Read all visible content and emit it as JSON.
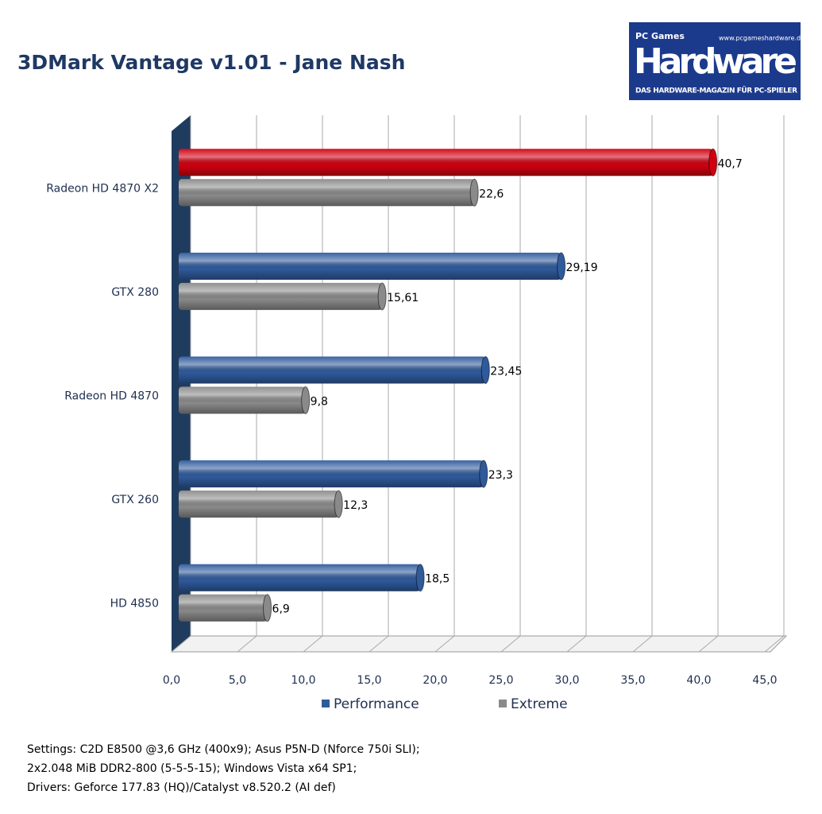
{
  "chart_data": {
    "type": "hbar",
    "title": "3DMark Vantage v1.01 -  Jane Nash",
    "categories": [
      "Radeon HD 4870 X2",
      "GTX 280",
      "Radeon HD 4870",
      "GTX 260",
      "HD 4850"
    ],
    "series": [
      {
        "name": "Performance",
        "color": "#2f5a9c",
        "colors": [
          "#d00010",
          "#2f5a9c",
          "#2f5a9c",
          "#2f5a9c",
          "#2f5a9c"
        ],
        "values": [
          40.7,
          29.19,
          23.45,
          23.3,
          18.5
        ],
        "value_labels": [
          "40,7",
          "29,19",
          "23,45",
          "23,3",
          "18,5"
        ]
      },
      {
        "name": "Extreme",
        "color": "#8a8a8a",
        "values": [
          22.6,
          15.61,
          9.8,
          12.3,
          6.9
        ],
        "value_labels": [
          "22,6",
          "15,61",
          "9,8",
          "12,3",
          "6,9"
        ]
      }
    ],
    "xlim": [
      0,
      45
    ],
    "xticks": [
      {
        "value": 0,
        "label": "0,0"
      },
      {
        "value": 5,
        "label": "5,0"
      },
      {
        "value": 10,
        "label": "10,0"
      },
      {
        "value": 15,
        "label": "15,0"
      },
      {
        "value": 20,
        "label": "20,0"
      },
      {
        "value": 25,
        "label": "25,0"
      },
      {
        "value": 30,
        "label": "30,0"
      },
      {
        "value": 35,
        "label": "35,0"
      },
      {
        "value": 40,
        "label": "40,0"
      },
      {
        "value": 45,
        "label": "45,0"
      }
    ],
    "grid": true,
    "notes": [
      "Settings: C2D E8500 @3,6 GHz (400x9); Asus P5N-D (Nforce 750i SLI);",
      "2x2.048 MiB DDR2-800 (5-5-5-15);  Windows Vista  x64 SP1;",
      "Drivers: Geforce 177.83 (HQ)/Catalyst  v8.520.2 (AI def)"
    ]
  },
  "logo": {
    "brand": "PC Games",
    "name": "Hardware",
    "url": "www.pcgameshardware.de",
    "tagline": "DAS HARDWARE-MAGAZIN FÜR PC-SPIELER"
  }
}
